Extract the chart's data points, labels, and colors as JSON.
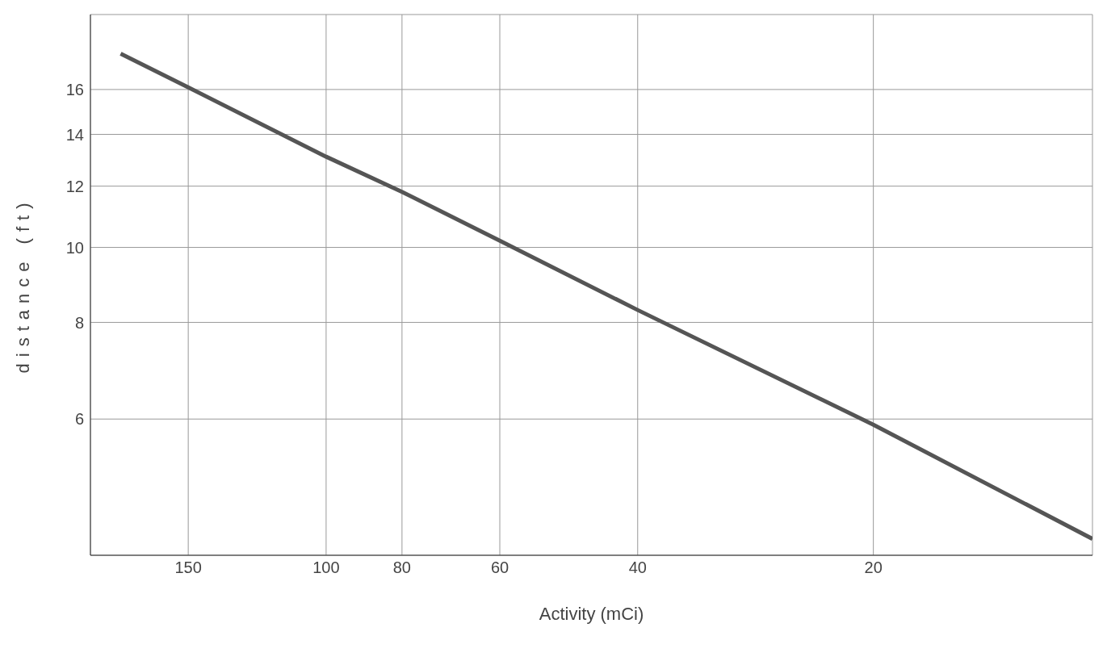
{
  "chart_data": {
    "type": "line",
    "xlabel": "Activity (mCi)",
    "ylabel": "distance (ft)",
    "x": [
      183,
      150,
      100,
      80,
      60,
      40,
      20,
      10.5
    ],
    "series": [
      {
        "color": "#555555",
        "values": [
          17.8,
          16.1,
          13.1,
          11.8,
          10.2,
          8.3,
          5.9,
          4.2
        ]
      }
    ],
    "xlim": [
      200,
      10.5
    ],
    "xticks": [
      150,
      100,
      80,
      60,
      40,
      20
    ],
    "ylim": [
      4,
      20
    ],
    "yticks": [
      6,
      8,
      10,
      12,
      14,
      16
    ],
    "log": "xy",
    "grid": true,
    "marker": "none",
    "line_style": "solid"
  }
}
